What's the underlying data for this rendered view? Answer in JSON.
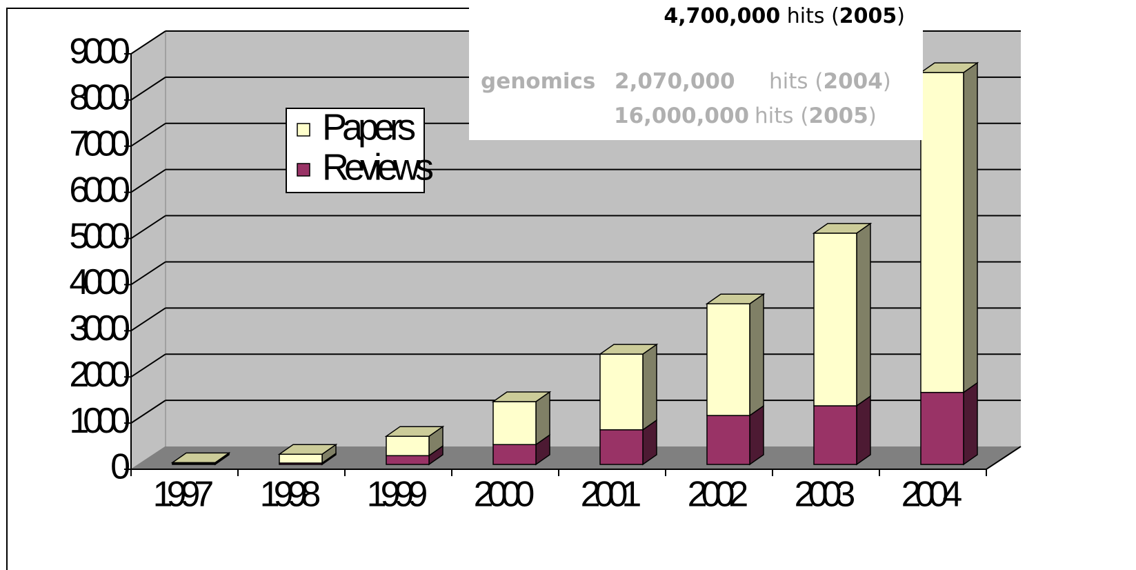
{
  "chart_data": {
    "type": "bar3d-stacked",
    "categories": [
      "1997",
      "1998",
      "1999",
      "2000",
      "2001",
      "2002",
      "2003",
      "2004"
    ],
    "series": [
      {
        "name": "Reviews",
        "color": "#993366",
        "side_color": "#4d1a33",
        "values": [
          20,
          30,
          190,
          430,
          750,
          1060,
          1270,
          1560
        ]
      },
      {
        "name": "Papers",
        "color": "#ffffcc",
        "side_color": "#808066",
        "values": [
          20,
          190,
          420,
          930,
          1640,
          2420,
          3740,
          6930
        ]
      }
    ],
    "legend_order": [
      1,
      0
    ],
    "ylim": [
      0,
      9000
    ],
    "yticks": [
      0,
      1000,
      2000,
      3000,
      4000,
      5000,
      6000,
      7000,
      8000,
      9000
    ],
    "grid": true
  },
  "annotations": [
    {
      "color": "#000000",
      "parts": [
        {
          "text": "4,700,000",
          "bold": true
        },
        {
          "text": " hits ("
        },
        {
          "text": "2005",
          "bold": true
        },
        {
          "text": ")"
        }
      ]
    },
    {
      "color": "#b0b0b0",
      "parts": [
        {
          "text": "genomics",
          "bold": true
        },
        {
          "text": "2,070,000",
          "bold": true
        },
        {
          "text": "hits ("
        },
        {
          "text": "2004",
          "bold": true
        },
        {
          "text": ")"
        }
      ]
    },
    {
      "color": "#b0b0b0",
      "parts": [
        {
          "text": "16,000,000",
          "bold": true
        },
        {
          "text": "hits ("
        },
        {
          "text": "2005",
          "bold": true
        },
        {
          "text": ")"
        }
      ]
    }
  ]
}
